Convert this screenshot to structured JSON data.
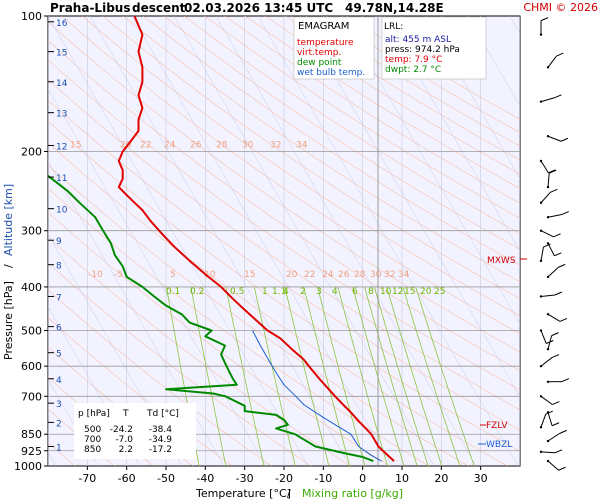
{
  "header": {
    "station": "Praha-Libus",
    "direction": "descent",
    "datetime": "02.03.2026 13:45 UTC",
    "coords": "49.78N,14.28E",
    "copyright": "CHMI © 2026"
  },
  "legend": {
    "title": "EMAGRAM",
    "items": [
      {
        "label": "temperature",
        "color": "#e00000"
      },
      {
        "label": "virt.temp.",
        "color": "#e00000"
      },
      {
        "label": "dew point",
        "color": "#008a00"
      },
      {
        "label": "wet bulb temp.",
        "color": "#1a5fd0"
      }
    ]
  },
  "lrl": {
    "title": "LRL:",
    "alt": "alt: 455 m ASL",
    "press": "press: 974.2 hPa",
    "temp": "temp: 7.9 °C",
    "dwpt": "dwpt: 2.7 °C"
  },
  "table": {
    "headers": [
      "p [hPa]",
      "T",
      "Td [°C]"
    ],
    "rows": [
      [
        "500",
        "-24.2",
        "-38.4"
      ],
      [
        "700",
        "-7.0",
        "-34.9"
      ],
      [
        "850",
        "2.2",
        "-17.2"
      ]
    ]
  },
  "markers": {
    "mxws": "MXWS",
    "fzlv": "FZLV",
    "wbzl": "WBZL"
  },
  "colors": {
    "plot_bg": "#f3f3ff",
    "temperature": "#e00000",
    "dewpoint": "#008a00",
    "wetbulb": "#1a5fd0",
    "dry_adiabat": "#f4b49a",
    "mixing_ratio": "#8cc63f",
    "isotherm": "#c8c8e0",
    "isobar": "#9a9a9a",
    "axis_label_blue": "#1a4fb0"
  },
  "chart_data": {
    "type": "line",
    "title": "Praha-Libus descent 02.03.2026 13:45 UTC 49.78N,14.28E",
    "xlabel": "Temperature [°C]",
    "xlabel2": "Mixing ratio [g/kg]",
    "ylabel": "Pressure [hPa]",
    "ylabel2": "Altitude [km]",
    "xlim": [
      -80,
      40
    ],
    "ylim": [
      1000,
      100
    ],
    "y_scale": "log",
    "x_ticks": [
      "-70",
      "-60",
      "-50",
      "-40",
      "-30",
      "-20",
      "-10",
      "0",
      "10",
      "20",
      "30"
    ],
    "x_tick_values": [
      -70,
      -60,
      -50,
      -40,
      -30,
      -20,
      -10,
      0,
      10,
      20,
      30
    ],
    "p_ticks": [
      "100",
      "200",
      "300",
      "400",
      "500",
      "600",
      "700",
      "850",
      "925",
      "1000"
    ],
    "p_tick_values": [
      100,
      200,
      300,
      400,
      500,
      600,
      700,
      850,
      925,
      1000
    ],
    "altitude_ticks": [
      "16",
      "15",
      "14",
      "13",
      "12",
      "11",
      "10",
      "9",
      "8",
      "7",
      "6",
      "5",
      "4",
      "3",
      "2",
      "1"
    ],
    "altitude_tick_pressures": [
      103,
      120,
      140,
      164,
      194,
      228,
      268,
      315,
      357,
      420,
      490,
      560,
      640,
      725,
      800,
      905
    ],
    "mixing_ratio_labels_upper": [
      "0.1",
      "0.2",
      "0.5",
      "1",
      "1.1",
      "4",
      "2",
      "3",
      "4",
      "6",
      "8",
      "10",
      "12",
      "15",
      "20",
      "25"
    ],
    "mixing_ratio_labels_lower": [
      "0.1",
      "0.2",
      "0.5",
      "1",
      "2",
      "3",
      "4",
      "6",
      "8",
      "10",
      "12",
      "15",
      "20",
      "25"
    ],
    "dry_adiabat_labels_200": [
      "15",
      "20",
      "22",
      "24",
      "26",
      "28",
      "30",
      "32",
      "34"
    ],
    "dry_adiabat_labels_380": [
      "-10",
      "-5",
      "5",
      "10",
      "15",
      "20",
      "22",
      "24",
      "26",
      "28",
      "30",
      "32",
      "34"
    ],
    "series": [
      {
        "name": "temperature",
        "points": [
          [
            8,
            975
          ],
          [
            6,
            940
          ],
          [
            4,
            905
          ],
          [
            2.2,
            850
          ],
          [
            0.5,
            820
          ],
          [
            -1,
            795
          ],
          [
            -3,
            760
          ],
          [
            -5,
            730
          ],
          [
            -7,
            700
          ],
          [
            -9,
            670
          ],
          [
            -11,
            640
          ],
          [
            -13,
            610
          ],
          [
            -15,
            580
          ],
          [
            -18,
            550
          ],
          [
            -21,
            520
          ],
          [
            -24.2,
            500
          ],
          [
            -27,
            475
          ],
          [
            -30,
            450
          ],
          [
            -33,
            425
          ],
          [
            -36,
            400
          ],
          [
            -40,
            375
          ],
          [
            -44,
            350
          ],
          [
            -48,
            325
          ],
          [
            -51,
            305
          ],
          [
            -54,
            285
          ],
          [
            -56,
            270
          ],
          [
            -58,
            260
          ],
          [
            -60,
            250
          ],
          [
            -62,
            240
          ],
          [
            -61,
            230
          ],
          [
            -61,
            220
          ],
          [
            -62,
            210
          ],
          [
            -61,
            200
          ],
          [
            -59,
            190
          ],
          [
            -57,
            180
          ],
          [
            -57,
            170
          ],
          [
            -56,
            160
          ],
          [
            -57,
            150
          ],
          [
            -56,
            140
          ],
          [
            -56,
            130
          ],
          [
            -57,
            120
          ],
          [
            -56,
            110
          ],
          [
            -58,
            100
          ]
        ]
      },
      {
        "name": "dew point",
        "points": [
          [
            2.7,
            975
          ],
          [
            0,
            955
          ],
          [
            -5,
            935
          ],
          [
            -12,
            905
          ],
          [
            -17.2,
            850
          ],
          [
            -22,
            825
          ],
          [
            -19,
            810
          ],
          [
            -20,
            790
          ],
          [
            -22,
            770
          ],
          [
            -30,
            755
          ],
          [
            -30,
            735
          ],
          [
            -34.9,
            700
          ],
          [
            -38,
            690
          ],
          [
            -50,
            675
          ],
          [
            -32,
            660
          ],
          [
            -33,
            640
          ],
          [
            -34,
            615
          ],
          [
            -35,
            590
          ],
          [
            -36,
            565
          ],
          [
            -35,
            540
          ],
          [
            -40,
            515
          ],
          [
            -38.4,
            500
          ],
          [
            -44,
            480
          ],
          [
            -46,
            460
          ],
          [
            -50,
            440
          ],
          [
            -53,
            420
          ],
          [
            -56,
            400
          ],
          [
            -60,
            380
          ],
          [
            -61,
            360
          ],
          [
            -63,
            340
          ],
          [
            -64,
            320
          ],
          [
            -66,
            300
          ],
          [
            -68,
            280
          ],
          [
            -72,
            260
          ],
          [
            -75,
            245
          ],
          [
            -79,
            230
          ],
          [
            -82,
            220
          ],
          [
            -86,
            210
          ]
        ]
      },
      {
        "name": "wet bulb temp.",
        "points": [
          [
            4.8,
            975
          ],
          [
            2,
            945
          ],
          [
            -1,
            905
          ],
          [
            -3,
            850
          ],
          [
            -6,
            820
          ],
          [
            -9,
            790
          ],
          [
            -12,
            760
          ],
          [
            -15,
            730
          ],
          [
            -17,
            700
          ],
          [
            -20,
            660
          ],
          [
            -22,
            620
          ],
          [
            -24,
            580
          ],
          [
            -26,
            540
          ],
          [
            -28,
            500
          ]
        ]
      }
    ]
  }
}
